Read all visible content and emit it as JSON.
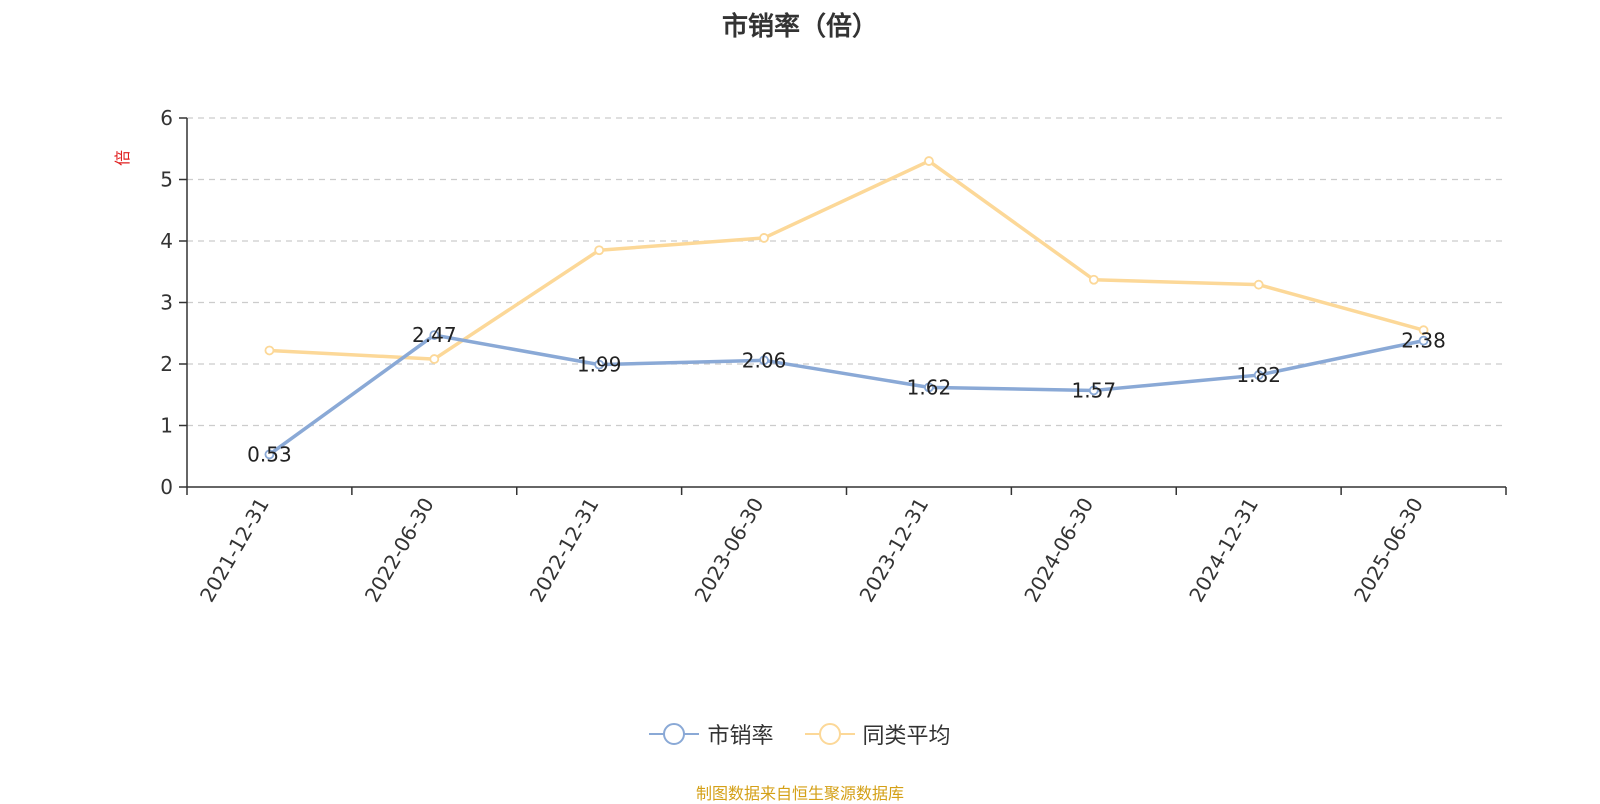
{
  "chart_data": {
    "type": "line",
    "title": "市销率（倍）",
    "ylabel": "倍",
    "xlabel": "",
    "categories": [
      "2021-12-31",
      "2022-06-30",
      "2022-12-31",
      "2023-06-30",
      "2023-12-31",
      "2024-06-30",
      "2024-12-31",
      "2025-06-30"
    ],
    "ylim": [
      0,
      6
    ],
    "yticks": [
      0,
      1,
      2,
      3,
      4,
      5,
      6
    ],
    "grid": true,
    "legend_position": "bottom",
    "series": [
      {
        "name": "市销率",
        "color": "#8aa9d6",
        "values": [
          0.53,
          2.47,
          1.99,
          2.06,
          1.62,
          1.57,
          1.82,
          2.38
        ],
        "labels": [
          "0.53",
          "2.47",
          "1.99",
          "2.06",
          "1.62",
          "1.57",
          "1.82",
          "2.38"
        ]
      },
      {
        "name": "同类平均",
        "color": "#fcd898",
        "values": [
          2.22,
          2.08,
          3.85,
          4.05,
          5.3,
          3.37,
          3.29,
          2.55
        ]
      }
    ]
  },
  "source_note": "制图数据来自恒生聚源数据库"
}
